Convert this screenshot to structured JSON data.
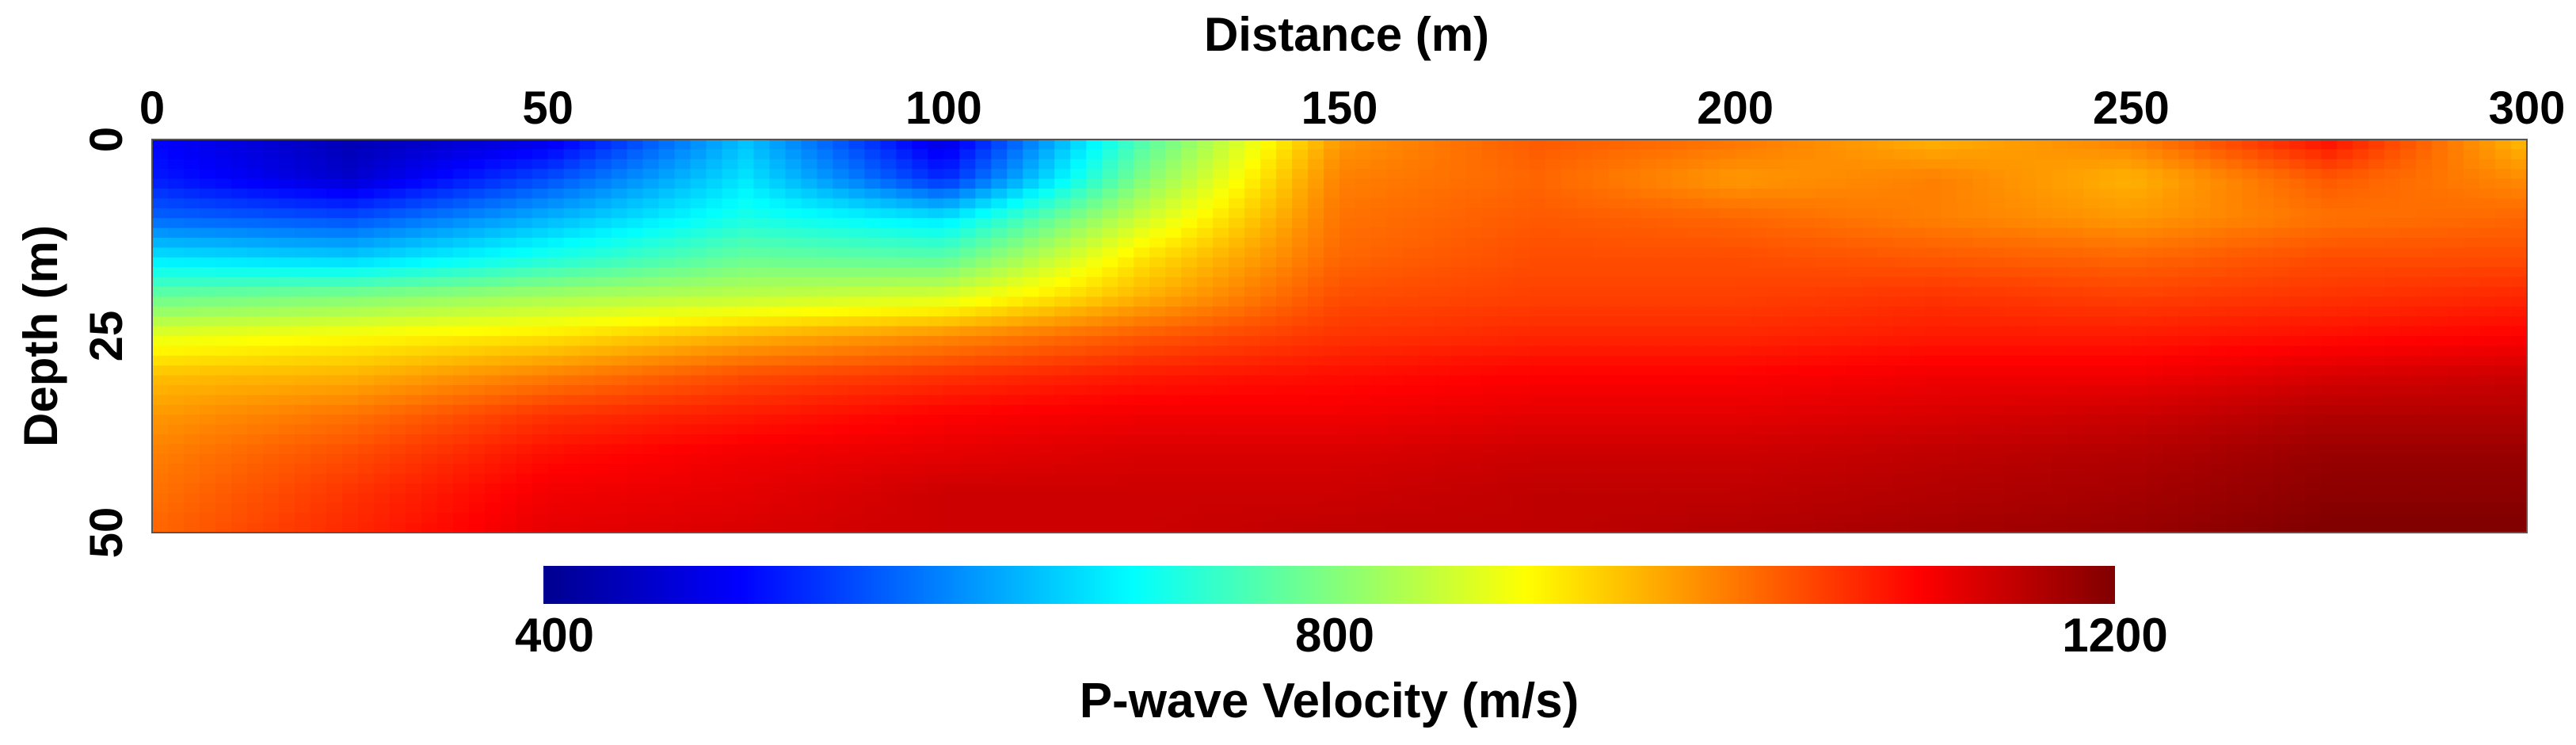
{
  "chart_data": {
    "type": "heatmap",
    "title": "Distance (m)",
    "xlabel": "Distance (m)",
    "ylabel": "Depth (m)",
    "xlim": [
      0,
      300
    ],
    "ylim": [
      50,
      0
    ],
    "x_ticks": [
      "0",
      "50",
      "100",
      "150",
      "200",
      "250",
      "300"
    ],
    "y_ticks": [
      "0",
      "25",
      "50"
    ],
    "colormap": "jet",
    "colorbar": {
      "label": "P-wave Velocity (m/s)",
      "range": [
        400,
        1200
      ],
      "ticks": [
        "400",
        "800",
        "1200"
      ]
    },
    "distances": [
      0,
      25,
      50,
      75,
      100,
      125,
      150,
      175,
      200,
      225,
      250,
      275,
      300
    ],
    "depths": [
      0,
      5,
      10,
      15,
      20,
      25,
      30,
      35,
      40,
      45,
      50
    ],
    "velocity": [
      [
        500,
        440,
        480,
        650,
        470,
        760,
        980,
        1030,
        1010,
        960,
        1000,
        1090,
        950
      ],
      [
        520,
        460,
        560,
        680,
        530,
        800,
        1000,
        1020,
        980,
        1000,
        960,
        1030,
        990
      ],
      [
        580,
        560,
        640,
        720,
        680,
        860,
        1010,
        1030,
        1020,
        1000,
        980,
        1010,
        1020
      ],
      [
        680,
        660,
        720,
        780,
        770,
        920,
        1020,
        1040,
        1040,
        1030,
        1020,
        1040,
        1040
      ],
      [
        780,
        800,
        830,
        850,
        870,
        960,
        1040,
        1050,
        1050,
        1060,
        1050,
        1060,
        1070
      ],
      [
        880,
        900,
        920,
        960,
        990,
        1030,
        1060,
        1070,
        1070,
        1080,
        1080,
        1090,
        1100
      ],
      [
        950,
        960,
        1000,
        1040,
        1060,
        1080,
        1090,
        1100,
        1100,
        1110,
        1110,
        1130,
        1140
      ],
      [
        980,
        1010,
        1060,
        1080,
        1100,
        1110,
        1110,
        1120,
        1120,
        1130,
        1140,
        1160,
        1160
      ],
      [
        1000,
        1040,
        1090,
        1110,
        1120,
        1130,
        1130,
        1140,
        1140,
        1150,
        1160,
        1180,
        1180
      ],
      [
        1010,
        1060,
        1110,
        1120,
        1140,
        1140,
        1140,
        1150,
        1150,
        1160,
        1170,
        1190,
        1190
      ],
      [
        1020,
        1070,
        1120,
        1130,
        1140,
        1140,
        1150,
        1150,
        1160,
        1170,
        1180,
        1200,
        1200
      ]
    ]
  }
}
